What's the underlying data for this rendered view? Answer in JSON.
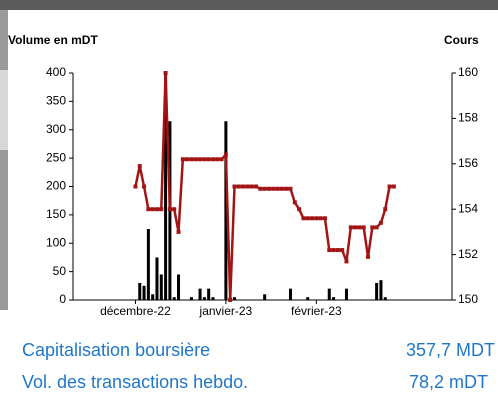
{
  "chart_data": {
    "type": "combo",
    "ylabel": "Volume en mDT",
    "y2label": "Cours",
    "categories": [
      null,
      null,
      null,
      null,
      null,
      null,
      null,
      null,
      null,
      null,
      null,
      null,
      null,
      null,
      null,
      null,
      null,
      null,
      null,
      null,
      null,
      null,
      null,
      null,
      null,
      null,
      null,
      null,
      null,
      null,
      null,
      null,
      null,
      null,
      null,
      null,
      null,
      null,
      null,
      null,
      null,
      null,
      null,
      null,
      null,
      null,
      null,
      null,
      null,
      null,
      null,
      null,
      null,
      null,
      null,
      null,
      null,
      null,
      null,
      null,
      null,
      null,
      null,
      null,
      null,
      null,
      null,
      null,
      null,
      null,
      null,
      null,
      null,
      null,
      null,
      null,
      null,
      null,
      null,
      null,
      null,
      null,
      null,
      null,
      null,
      null,
      null,
      null
    ],
    "xticks": [
      {
        "value": 14,
        "label": "décembre-22"
      },
      {
        "value": 35,
        "label": "janvier-23"
      },
      {
        "value": 56,
        "label": "février-23"
      }
    ],
    "ylim": [
      0,
      400
    ],
    "yticks": [
      0,
      50,
      100,
      150,
      200,
      250,
      300,
      350,
      400
    ],
    "y2lim": [
      150,
      160
    ],
    "y2ticks": [
      150,
      152,
      154,
      156,
      158,
      160
    ],
    "series": [
      {
        "type": "bar",
        "color": "#000000",
        "values": [
          null,
          null,
          null,
          null,
          null,
          null,
          null,
          null,
          null,
          null,
          null,
          null,
          null,
          null,
          null,
          30,
          25,
          125,
          10,
          75,
          45,
          400,
          315,
          5,
          45,
          null,
          null,
          5,
          null,
          20,
          5,
          20,
          5,
          null,
          null,
          315,
          5,
          5,
          null,
          null,
          null,
          null,
          null,
          null,
          10,
          null,
          null,
          null,
          null,
          null,
          20,
          null,
          null,
          null,
          5,
          null,
          null,
          null,
          null,
          20,
          5,
          null,
          null,
          20,
          null,
          null,
          null,
          null,
          null,
          null,
          30,
          35,
          5,
          null,
          null,
          null,
          null,
          null,
          null,
          null,
          null,
          null,
          null,
          null,
          null,
          null,
          null,
          null
        ]
      },
      {
        "type": "line",
        "axis": "y2",
        "color": "#a31515",
        "values": [
          null,
          null,
          null,
          null,
          null,
          null,
          null,
          null,
          null,
          null,
          null,
          null,
          null,
          null,
          155,
          155.9,
          155,
          154,
          154,
          154,
          154,
          160,
          154,
          154,
          153,
          156.2,
          156.2,
          156.2,
          156.2,
          156.2,
          156.2,
          156.2,
          156.2,
          156.2,
          156.2,
          156.4,
          150,
          155,
          155,
          155,
          155,
          155,
          155,
          154.9,
          154.9,
          154.9,
          154.9,
          154.9,
          154.9,
          154.9,
          154.9,
          154.3,
          154,
          153.6,
          153.6,
          153.6,
          153.6,
          153.6,
          153.6,
          152.2,
          152.2,
          152.2,
          152.2,
          151.7,
          153.2,
          153.2,
          153.2,
          153.2,
          151.9,
          153.2,
          153.2,
          153.4,
          154,
          155,
          155,
          null,
          null,
          null,
          null,
          null,
          null,
          null,
          null,
          null,
          null,
          null,
          null,
          null
        ]
      }
    ]
  },
  "stats": [
    {
      "label": "Capitalisation boursière",
      "value": "357,7 MDT"
    },
    {
      "label": "Vol. des transactions hebdo.",
      "value": "78,2 mDT"
    }
  ]
}
